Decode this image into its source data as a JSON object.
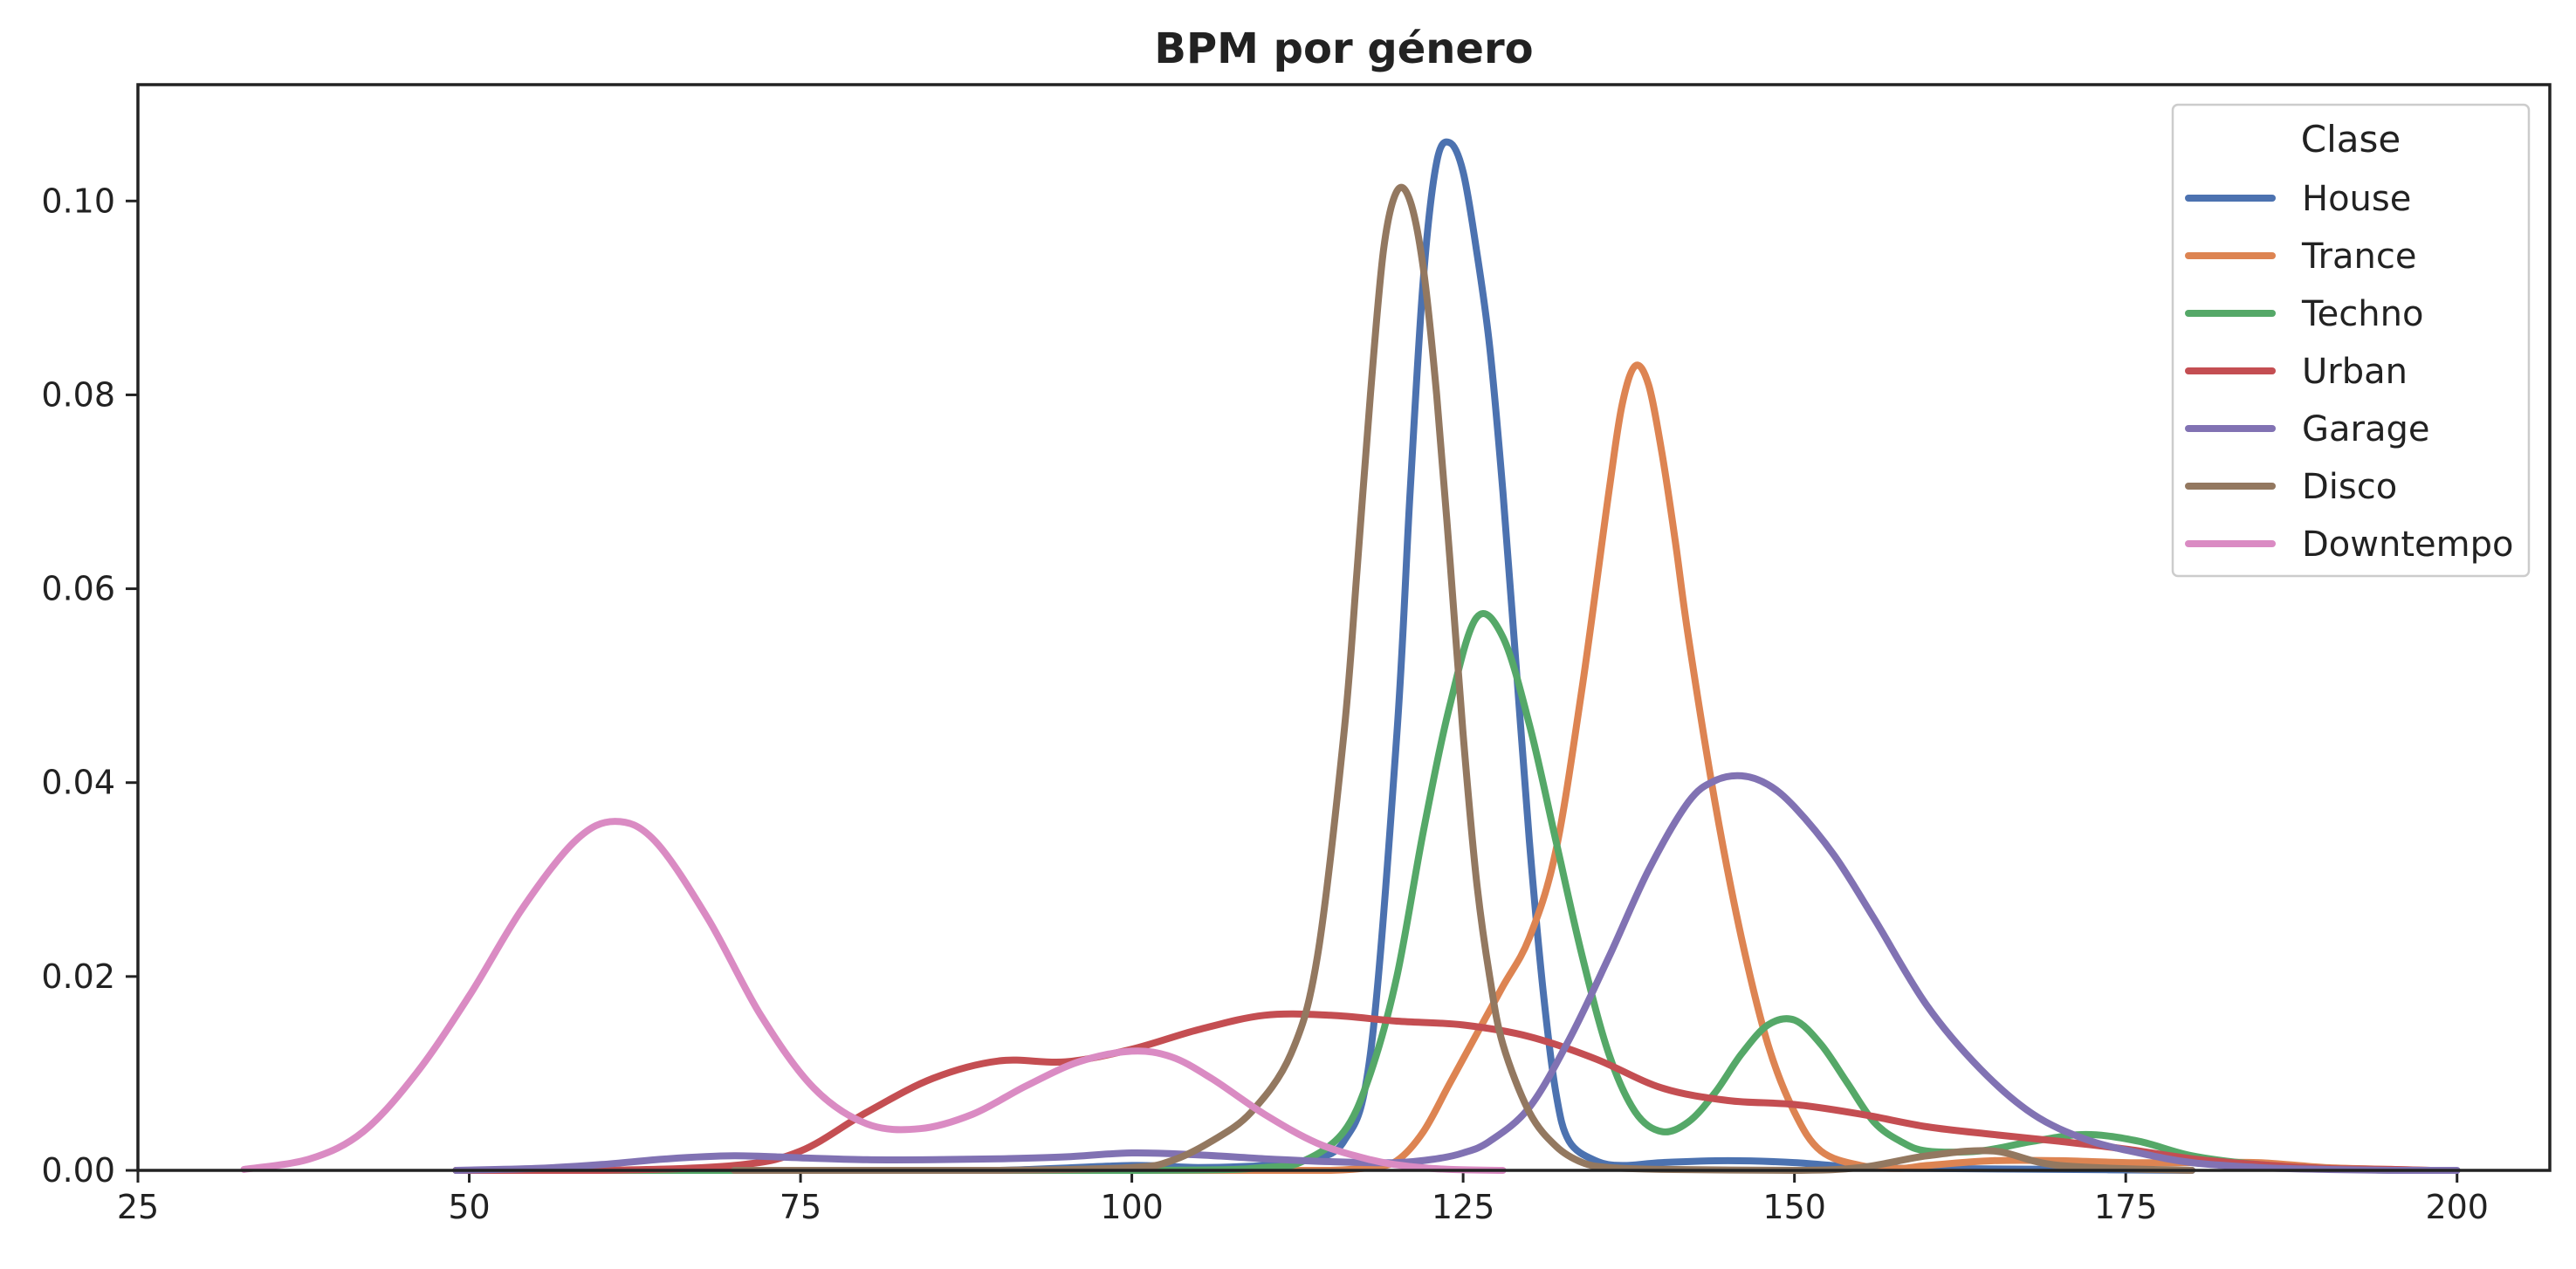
{
  "chart_data": {
    "type": "line",
    "title": "BPM por género",
    "xlabel": "",
    "ylabel": "",
    "xlim": [
      25,
      207
    ],
    "ylim": [
      0,
      0.112
    ],
    "xticks": [
      25,
      50,
      75,
      100,
      125,
      150,
      175,
      200
    ],
    "xtick_labels": [
      "25",
      "50",
      "75",
      "100",
      "125",
      "150",
      "175",
      "200"
    ],
    "yticks": [
      0,
      0.02,
      0.04,
      0.06,
      0.08,
      0.1
    ],
    "ytick_labels": [
      "0.00",
      "0.02",
      "0.04",
      "0.06",
      "0.08",
      "0.10"
    ],
    "grid": false,
    "legend": {
      "title": "Clase",
      "position": "top-right"
    },
    "series": [
      {
        "name": "House",
        "color": "#4c72b0",
        "x": [
          49,
          60,
          70,
          80,
          90,
          100,
          105,
          110,
          113,
          116,
          118,
          120,
          121,
          122,
          123,
          124,
          125,
          126,
          127,
          128,
          129,
          130,
          131,
          132,
          133,
          135,
          137,
          140,
          145,
          150,
          155,
          160,
          170,
          180
        ],
        "y": [
          0,
          0,
          0,
          0,
          0,
          0.0005,
          0.0003,
          0.0005,
          0.001,
          0.003,
          0.012,
          0.045,
          0.07,
          0.092,
          0.104,
          0.106,
          0.103,
          0.095,
          0.085,
          0.07,
          0.052,
          0.034,
          0.019,
          0.008,
          0.003,
          0.001,
          0.0005,
          0.0008,
          0.001,
          0.0008,
          0.0003,
          0.0002,
          0.0001,
          0
        ]
      },
      {
        "name": "Trance",
        "color": "#dd8452",
        "x": [
          49,
          100,
          110,
          115,
          118,
          120,
          122,
          124,
          126,
          128,
          130,
          132,
          134,
          136,
          137,
          138,
          139,
          140,
          141,
          142,
          144,
          146,
          148,
          150,
          152,
          155,
          158,
          160,
          165,
          170,
          175,
          180,
          185,
          190,
          195,
          198
        ],
        "y": [
          0,
          0,
          0,
          0,
          0.0003,
          0.001,
          0.004,
          0.009,
          0.014,
          0.019,
          0.024,
          0.033,
          0.05,
          0.07,
          0.079,
          0.083,
          0.081,
          0.074,
          0.065,
          0.055,
          0.038,
          0.024,
          0.013,
          0.006,
          0.002,
          0.0005,
          0.0002,
          0.0005,
          0.001,
          0.001,
          0.0008,
          0.0008,
          0.0008,
          0.0003,
          0.0001,
          0
        ]
      },
      {
        "name": "Techno",
        "color": "#55a868",
        "x": [
          49,
          100,
          110,
          113,
          116,
          118,
          120,
          122,
          124,
          126,
          128,
          130,
          132,
          134,
          136,
          138,
          140,
          142,
          144,
          146,
          148,
          150,
          152,
          154,
          156,
          158,
          160,
          164,
          168,
          172,
          176,
          180,
          185,
          190,
          195
        ],
        "y": [
          0,
          0,
          0.0003,
          0.001,
          0.004,
          0.01,
          0.02,
          0.035,
          0.048,
          0.057,
          0.055,
          0.046,
          0.034,
          0.022,
          0.012,
          0.006,
          0.004,
          0.005,
          0.008,
          0.012,
          0.015,
          0.0155,
          0.013,
          0.009,
          0.005,
          0.003,
          0.002,
          0.002,
          0.003,
          0.0037,
          0.003,
          0.0015,
          0.0006,
          0.0002,
          0
        ]
      },
      {
        "name": "Urban",
        "color": "#c44e52",
        "x": [
          49,
          60,
          70,
          75,
          80,
          85,
          90,
          95,
          100,
          105,
          110,
          115,
          120,
          125,
          130,
          135,
          140,
          145,
          150,
          155,
          160,
          165,
          170,
          175,
          180,
          185,
          190,
          195,
          198
        ],
        "y": [
          0,
          0,
          0.0005,
          0.002,
          0.006,
          0.0095,
          0.0113,
          0.0112,
          0.0125,
          0.0145,
          0.016,
          0.016,
          0.0154,
          0.015,
          0.0138,
          0.0115,
          0.0085,
          0.0072,
          0.0068,
          0.0058,
          0.0045,
          0.0037,
          0.003,
          0.0022,
          0.0012,
          0.0006,
          0.0002,
          0.0001,
          0
        ]
      },
      {
        "name": "Garage",
        "color": "#8172b3",
        "x": [
          49,
          55,
          60,
          65,
          70,
          75,
          80,
          85,
          90,
          95,
          100,
          105,
          110,
          115,
          120,
          123,
          125,
          127,
          130,
          133,
          136,
          139,
          142,
          144,
          146,
          148,
          150,
          153,
          156,
          160,
          164,
          168,
          172,
          176,
          180,
          185,
          190,
          195,
          200
        ],
        "y": [
          0,
          0.0002,
          0.0006,
          0.0012,
          0.0015,
          0.0013,
          0.0011,
          0.0011,
          0.0012,
          0.0014,
          0.0018,
          0.0016,
          0.0012,
          0.0009,
          0.0008,
          0.0012,
          0.0018,
          0.003,
          0.0065,
          0.0135,
          0.022,
          0.031,
          0.038,
          0.0402,
          0.0407,
          0.0398,
          0.0375,
          0.0325,
          0.026,
          0.017,
          0.0105,
          0.0058,
          0.0032,
          0.0018,
          0.0008,
          0.0003,
          0.0001,
          0,
          0
        ]
      },
      {
        "name": "Disco",
        "color": "#937860",
        "x": [
          70,
          90,
          100,
          103,
          106,
          109,
          112,
          114,
          116,
          117,
          118,
          119,
          120,
          121,
          122,
          123,
          124,
          125,
          126,
          127,
          128,
          130,
          132,
          134,
          136,
          140,
          150,
          155,
          160,
          165,
          170,
          180
        ],
        "y": [
          0,
          0,
          0.0003,
          0.001,
          0.003,
          0.006,
          0.012,
          0.022,
          0.045,
          0.062,
          0.08,
          0.095,
          0.101,
          0.1,
          0.093,
          0.08,
          0.063,
          0.045,
          0.03,
          0.02,
          0.013,
          0.006,
          0.0025,
          0.0008,
          0.0003,
          0.0001,
          0,
          0.0003,
          0.0015,
          0.002,
          0.0005,
          0
        ]
      },
      {
        "name": "Downtempo",
        "color": "#da8bc3",
        "x": [
          33,
          38,
          42,
          46,
          50,
          54,
          58,
          61,
          64,
          68,
          72,
          76,
          80,
          84,
          88,
          92,
          96,
          100,
          103,
          106,
          110,
          114,
          118,
          121,
          124,
          128
        ],
        "y": [
          0.0001,
          0.0012,
          0.004,
          0.01,
          0.018,
          0.027,
          0.034,
          0.036,
          0.034,
          0.026,
          0.016,
          0.0085,
          0.0048,
          0.0043,
          0.0058,
          0.0087,
          0.0112,
          0.0123,
          0.0117,
          0.0095,
          0.0058,
          0.0028,
          0.0011,
          0.0004,
          0.0001,
          0
        ]
      }
    ]
  }
}
